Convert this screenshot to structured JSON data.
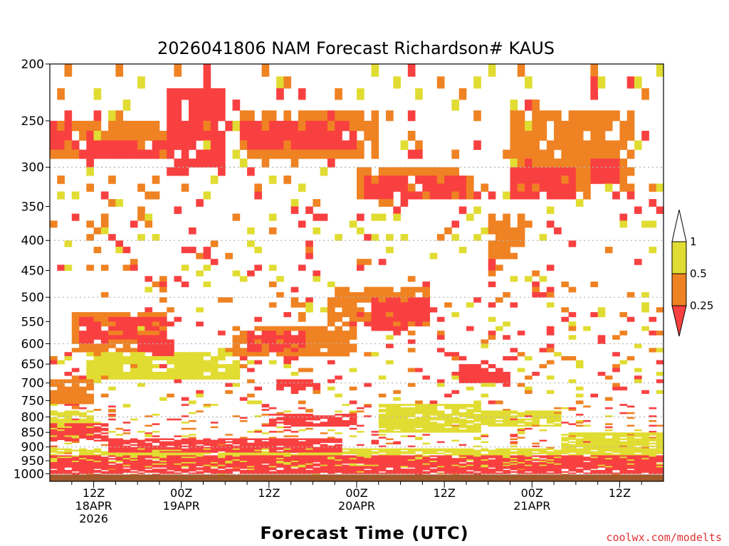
{
  "chart_data": {
    "type": "heatmap",
    "title": "2026041806 NAM Forecast Richardson# KAUS",
    "xlabel": "Forecast Time (UTC)",
    "ylabel": "",
    "y_axis": {
      "scale": "log-pressure",
      "range_hpa": [
        1030,
        200
      ],
      "ticks": [
        "200",
        "250",
        "300",
        "350",
        "400",
        "450",
        "500",
        "550",
        "600",
        "650",
        "700",
        "750",
        "800",
        "850",
        "900",
        "950",
        "1000"
      ],
      "gridlines_at": [
        300,
        400,
        500,
        600,
        700,
        800,
        900,
        1000
      ]
    },
    "x_axis": {
      "range_hours": [
        0,
        84
      ],
      "ticks": [
        {
          "hour": 6,
          "line1": "12Z",
          "line2": "18APR",
          "line3": "2026"
        },
        {
          "hour": 18,
          "line1": "00Z",
          "line2": "19APR",
          "line3": ""
        },
        {
          "hour": 30,
          "line1": "12Z",
          "line2": "",
          "line3": ""
        },
        {
          "hour": 42,
          "line1": "00Z",
          "line2": "20APR",
          "line3": ""
        },
        {
          "hour": 54,
          "line1": "12Z",
          "line2": "",
          "line3": ""
        },
        {
          "hour": 66,
          "line1": "00Z",
          "line2": "21APR",
          "line3": ""
        },
        {
          "hour": 78,
          "line1": "12Z",
          "line2": "",
          "line3": ""
        }
      ]
    },
    "legend": {
      "placement": "right",
      "categories": [
        {
          "label": "1",
          "range": "> 1",
          "color": "#ffffff"
        },
        {
          "label": "0.5",
          "range": "0.5 - 1",
          "color": "#e1dc32"
        },
        {
          "label": "0.25",
          "range": "0.25 - 0.5",
          "color": "#ef8222"
        },
        {
          "label": "",
          "range": "< 0.25",
          "color": "#f94040"
        }
      ]
    },
    "ground_color": "#a05a2c",
    "regions": [
      {
        "class": 1,
        "t0": 0,
        "t1": 84,
        "p0": 905,
        "p1": 975
      },
      {
        "class": 1,
        "t0": 5,
        "t1": 26,
        "p0": 625,
        "p1": 690
      },
      {
        "class": 1,
        "t0": 45,
        "t1": 59,
        "p0": 760,
        "p1": 850
      },
      {
        "class": 1,
        "t0": 58,
        "t1": 70,
        "p0": 780,
        "p1": 830
      },
      {
        "class": 1,
        "t0": 70,
        "t1": 84,
        "p0": 850,
        "p1": 920
      },
      {
        "class": 1,
        "t0": 0,
        "t1": 6,
        "p0": 780,
        "p1": 870
      },
      {
        "class": 2,
        "t0": 0,
        "t1": 6,
        "p0": 690,
        "p1": 760
      },
      {
        "class": 2,
        "t0": 3,
        "t1": 16,
        "p0": 530,
        "p1": 620
      },
      {
        "class": 2,
        "t0": 25,
        "t1": 42,
        "p0": 560,
        "p1": 630
      },
      {
        "class": 2,
        "t0": 38,
        "t1": 52,
        "p0": 480,
        "p1": 560
      },
      {
        "class": 2,
        "t0": 0,
        "t1": 5,
        "p0": 250,
        "p1": 290
      },
      {
        "class": 2,
        "t0": 6,
        "t1": 16,
        "p0": 250,
        "p1": 295
      },
      {
        "class": 2,
        "t0": 26,
        "t1": 45,
        "p0": 245,
        "p1": 290
      },
      {
        "class": 2,
        "t0": 42,
        "t1": 58,
        "p0": 300,
        "p1": 340
      },
      {
        "class": 2,
        "t0": 63,
        "t1": 80,
        "p0": 245,
        "p1": 330
      },
      {
        "class": 2,
        "t0": 60,
        "t1": 65,
        "p0": 360,
        "p1": 430
      },
      {
        "class": 3,
        "t0": 0,
        "t1": 84,
        "p0": 930,
        "p1": 1000
      },
      {
        "class": 3,
        "t0": 0,
        "t1": 8,
        "p0": 820,
        "p1": 880
      },
      {
        "class": 3,
        "t0": 8,
        "t1": 40,
        "p0": 870,
        "p1": 920
      },
      {
        "class": 3,
        "t0": 30,
        "t1": 42,
        "p0": 790,
        "p1": 830
      },
      {
        "class": 3,
        "t0": 4,
        "t1": 16,
        "p0": 540,
        "p1": 600
      },
      {
        "class": 3,
        "t0": 12,
        "t1": 17,
        "p0": 580,
        "p1": 630
      },
      {
        "class": 3,
        "t0": 27,
        "t1": 35,
        "p0": 570,
        "p1": 620
      },
      {
        "class": 3,
        "t0": 44,
        "t1": 52,
        "p0": 500,
        "p1": 570
      },
      {
        "class": 3,
        "t0": 56,
        "t1": 63,
        "p0": 650,
        "p1": 700
      },
      {
        "class": 3,
        "t0": 31,
        "t1": 37,
        "p0": 690,
        "p1": 720
      },
      {
        "class": 3,
        "t0": 0,
        "t1": 4,
        "p0": 250,
        "p1": 280
      },
      {
        "class": 3,
        "t0": 5,
        "t1": 16,
        "p0": 270,
        "p1": 295
      },
      {
        "class": 3,
        "t0": 16,
        "t1": 24,
        "p0": 220,
        "p1": 310
      },
      {
        "class": 3,
        "t0": 26,
        "t1": 42,
        "p0": 250,
        "p1": 285
      },
      {
        "class": 3,
        "t0": 43,
        "t1": 57,
        "p0": 310,
        "p1": 345
      },
      {
        "class": 3,
        "t0": 63,
        "t1": 72,
        "p0": 300,
        "p1": 345
      },
      {
        "class": 3,
        "t0": 74,
        "t1": 78,
        "p0": 290,
        "p1": 320
      },
      {
        "class": 3,
        "t0": 58,
        "t1": 61,
        "p0": 330,
        "p1": 345
      }
    ]
  }
}
